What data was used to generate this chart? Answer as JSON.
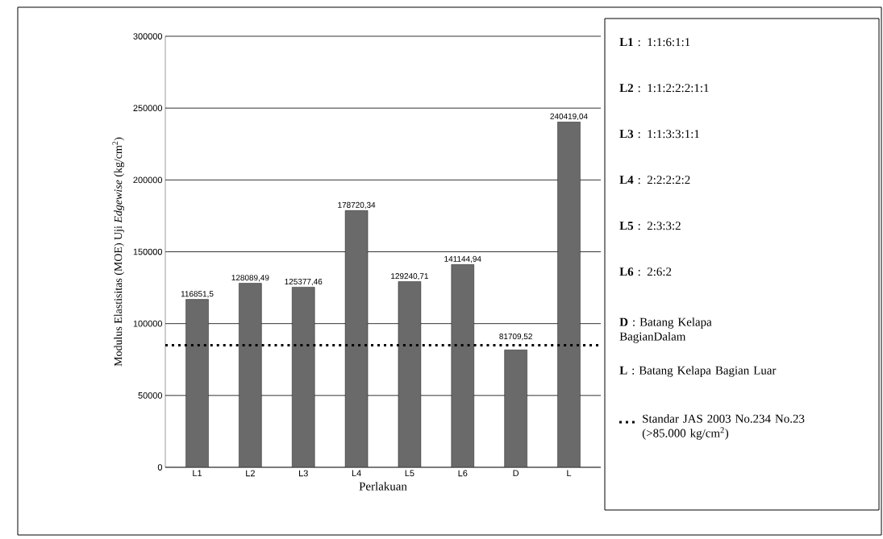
{
  "chart_data": {
    "type": "bar",
    "xlabel": "Perlakuan",
    "ylabel": "Modulus Elastisitas (MOE) Uji *Edgewise* (kg/cm$^{2}$)",
    "categories": [
      "L1",
      "L2",
      "L3",
      "L4",
      "L5",
      "L6",
      "D",
      "L"
    ],
    "values": [
      116851.5,
      128089.49,
      125377.46,
      178720.34,
      129240.71,
      141144.94,
      81709.52,
      240419.04
    ],
    "value_labels": [
      "116851,5",
      "128089,49",
      "125377,46",
      "178720,34",
      "129240,71",
      "141144,94",
      "81709,52",
      "240419,04"
    ],
    "color": "#6a6a6a",
    "ylim": [
      0,
      300000
    ],
    "yticks": [
      0,
      50000,
      100000,
      150000,
      200000,
      250000,
      300000
    ],
    "grid": "y",
    "ref_lines": [
      {
        "axis": "y",
        "value": 85000,
        "label": "Standar JAS 2003 No.234 No.23 (>85.000 kg/cm$^{2}$)",
        "color": "#000000",
        "line_style": "dotted"
      }
    ],
    "annotations": [
      "**L1** : 1:1:6:1:1",
      "**L2** : 1:1:2:2:2:1:1",
      "**L3** : 1:1:3:3:1:1",
      "**L4** : 2:2:2:2:2",
      "**L5** : 2:3:3:2",
      "**L6** : 2:6:2",
      "**D** : Batang Kelapa BagianDalam",
      "**L** : Batang Kelapa Bagian Luar"
    ]
  }
}
